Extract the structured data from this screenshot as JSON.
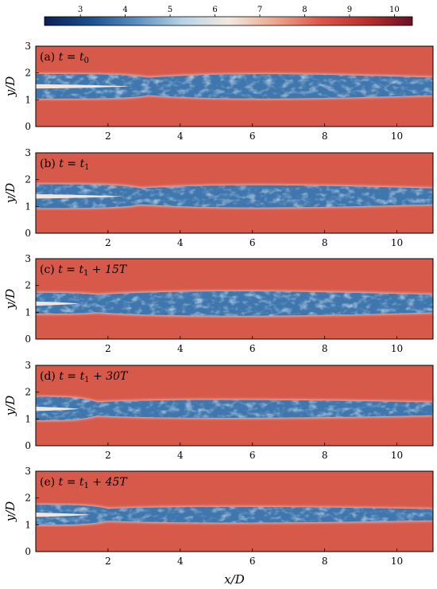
{
  "colorbar": {
    "min": 2.2,
    "max": 10.4,
    "ticks": [
      "3",
      "4",
      "5",
      "6",
      "7",
      "8",
      "9",
      "10"
    ],
    "tick_values": [
      3,
      4,
      5,
      6,
      7,
      8,
      9,
      10
    ],
    "colors": [
      "#0c1f55",
      "#1b4f8d",
      "#5b8fbf",
      "#b7d3e6",
      "#f3e8e2",
      "#eca88f",
      "#d9574a",
      "#b6312d",
      "#6d0f24"
    ]
  },
  "chart_data": {
    "type": "heatmap",
    "xlabel": "x/D",
    "ylabel": "y/D",
    "xlim": [
      0,
      11
    ],
    "ylim": [
      0,
      3
    ],
    "xticks": [
      2,
      4,
      6,
      8,
      10
    ],
    "yticks": [
      0,
      1,
      2,
      3
    ],
    "background_color": "#d6594a",
    "jet_color": "#3f76ad",
    "panels": [
      {
        "label": "(a)",
        "time": "t = t",
        "sub": "0",
        "extra": "",
        "jets": [
          {
            "y": 1.85,
            "w": 0.22
          },
          {
            "y": 1.15,
            "w": 0.22
          }
        ],
        "merge_x": 2.6,
        "end_x": 11,
        "spread": 0.55
      },
      {
        "label": "(b)",
        "time": "t = t",
        "sub": "1",
        "extra": "",
        "jets": [
          {
            "y": 1.7,
            "w": 0.25
          },
          {
            "y": 1.05,
            "w": 0.22
          }
        ],
        "merge_x": 2.4,
        "end_x": 11,
        "spread": 0.5
      },
      {
        "label": "(c)",
        "time": "t = t",
        "sub": "1",
        "extra": " + 15T",
        "jets": [
          {
            "y": 1.6,
            "w": 0.25
          },
          {
            "y": 1.05,
            "w": 0.2
          }
        ],
        "merge_x": 1.2,
        "end_x": 11,
        "spread": 0.55
      },
      {
        "label": "(d)",
        "time": "t = t",
        "sub": "1",
        "extra": " + 30T",
        "jets": [
          {
            "y": 1.7,
            "w": 0.25
          },
          {
            "y": 1.05,
            "w": 0.2
          }
        ],
        "merge_x": 1.2,
        "end_x": 11,
        "spread": 0.4
      },
      {
        "label": "(e)",
        "time": "t = t",
        "sub": "1",
        "extra": " + 45T",
        "jets": [
          {
            "y": 1.65,
            "w": 0.2
          },
          {
            "y": 1.1,
            "w": 0.2
          }
        ],
        "merge_x": 1.5,
        "end_x": 11,
        "spread": 0.35
      }
    ]
  }
}
